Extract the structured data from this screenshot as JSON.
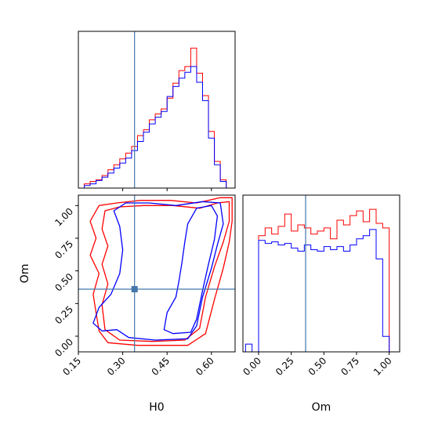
{
  "chart_data": [
    {
      "type": "histogram",
      "panel": "H0 marginal",
      "xlim": [
        0.15,
        0.68
      ],
      "x_ticks": [
        0.3,
        0.45,
        0.6
      ],
      "truth_line": 0.34,
      "bin_edges": [
        0.15,
        0.17,
        0.19,
        0.21,
        0.23,
        0.25,
        0.27,
        0.29,
        0.31,
        0.33,
        0.35,
        0.37,
        0.39,
        0.41,
        0.43,
        0.45,
        0.47,
        0.49,
        0.51,
        0.53,
        0.55,
        0.57,
        0.59,
        0.61,
        0.63,
        0.65,
        0.67
      ],
      "series": [
        {
          "color": "#ff0000",
          "counts": [
            0,
            0.5,
            0.8,
            1,
            1.5,
            2.2,
            2.8,
            3.5,
            4.2,
            5.0,
            6.3,
            7.0,
            8.2,
            8.9,
            9.5,
            10.8,
            12.6,
            14.1,
            14.6,
            16.8,
            13.8,
            11.1,
            6.8,
            3.2,
            1.0,
            0
          ]
        },
        {
          "color": "#0000ff",
          "counts": [
            0,
            0.3,
            0.5,
            0.9,
            1.3,
            1.8,
            2.4,
            3.0,
            3.6,
            4.5,
            5.6,
            6.7,
            7.7,
            8.5,
            9.2,
            11.0,
            12.2,
            13.2,
            13.9,
            14.6,
            12.7,
            10.5,
            6.0,
            2.8,
            0.8,
            0
          ]
        }
      ]
    },
    {
      "type": "contour",
      "panel": "H0 vs Om",
      "xlabel": "H0",
      "ylabel": "Om",
      "xlim": [
        0.15,
        0.68
      ],
      "ylim": [
        -0.12,
        1.08
      ],
      "x_ticks": [
        0.15,
        0.3,
        0.45,
        0.6
      ],
      "y_ticks": [
        0.0,
        0.25,
        0.5,
        0.75,
        1.0
      ],
      "truth_point": [
        0.34,
        0.36
      ],
      "series": [
        {
          "color": "#ff0000",
          "contours": [
            [
              [
                0.22,
                0.04
              ],
              [
                0.25,
                -0.05
              ],
              [
                0.35,
                -0.07
              ],
              [
                0.52,
                -0.07
              ],
              [
                0.58,
                0.02
              ],
              [
                0.61,
                0.28
              ],
              [
                0.64,
                0.52
              ],
              [
                0.66,
                0.72
              ],
              [
                0.67,
                0.88
              ],
              [
                0.67,
                1.06
              ],
              [
                0.63,
                1.06
              ],
              [
                0.55,
                1.02
              ],
              [
                0.46,
                1.04
              ],
              [
                0.36,
                1.04
              ],
              [
                0.28,
                1.02
              ],
              [
                0.22,
                1.0
              ],
              [
                0.19,
                0.88
              ],
              [
                0.21,
                0.75
              ],
              [
                0.19,
                0.62
              ],
              [
                0.22,
                0.48
              ],
              [
                0.2,
                0.32
              ],
              [
                0.21,
                0.18
              ]
            ],
            [
              [
                0.24,
                0.05
              ],
              [
                0.29,
                -0.03
              ],
              [
                0.4,
                -0.04
              ],
              [
                0.51,
                -0.03
              ],
              [
                0.56,
                0.06
              ],
              [
                0.58,
                0.3
              ],
              [
                0.61,
                0.53
              ],
              [
                0.64,
                0.72
              ],
              [
                0.66,
                0.88
              ],
              [
                0.66,
                1.03
              ],
              [
                0.62,
                1.02
              ],
              [
                0.56,
                0.98
              ],
              [
                0.47,
                1.0
              ],
              [
                0.37,
                1.0
              ],
              [
                0.29,
                0.99
              ],
              [
                0.24,
                0.96
              ],
              [
                0.23,
                0.82
              ],
              [
                0.25,
                0.69
              ],
              [
                0.23,
                0.55
              ],
              [
                0.25,
                0.4
              ],
              [
                0.23,
                0.24
              ]
            ]
          ]
        },
        {
          "color": "#0000ff",
          "contours": [
            [
              [
                0.2,
                0.1
              ],
              [
                0.23,
                0.04
              ],
              [
                0.28,
                0.05
              ],
              [
                0.32,
                -0.01
              ],
              [
                0.41,
                -0.03
              ],
              [
                0.52,
                -0.02
              ],
              [
                0.55,
                0.08
              ],
              [
                0.57,
                0.3
              ],
              [
                0.6,
                0.52
              ],
              [
                0.62,
                0.7
              ],
              [
                0.64,
                0.86
              ],
              [
                0.63,
                1.02
              ],
              [
                0.57,
                1.03
              ],
              [
                0.48,
                1.0
              ],
              [
                0.39,
                1.02
              ],
              [
                0.31,
                1.02
              ],
              [
                0.27,
                0.96
              ],
              [
                0.29,
                0.84
              ],
              [
                0.3,
                0.66
              ],
              [
                0.29,
                0.48
              ],
              [
                0.26,
                0.32
              ],
              [
                0.22,
                0.22
              ]
            ],
            [
              [
                0.44,
                0.05
              ],
              [
                0.47,
                0.02
              ],
              [
                0.53,
                0.03
              ],
              [
                0.55,
                0.13
              ],
              [
                0.57,
                0.35
              ],
              [
                0.59,
                0.55
              ],
              [
                0.61,
                0.74
              ],
              [
                0.62,
                0.92
              ],
              [
                0.6,
                1.0
              ],
              [
                0.55,
                0.98
              ],
              [
                0.52,
                0.86
              ],
              [
                0.51,
                0.72
              ],
              [
                0.5,
                0.56
              ],
              [
                0.49,
                0.42
              ],
              [
                0.48,
                0.3
              ],
              [
                0.45,
                0.18
              ]
            ]
          ]
        }
      ]
    },
    {
      "type": "histogram",
      "panel": "Om marginal",
      "xlabel": "Om",
      "xlim": [
        -0.12,
        1.08
      ],
      "x_ticks": [
        0.0,
        0.25,
        0.5,
        0.75,
        1.0
      ],
      "x_tick_labels": [
        "0.00",
        "0.25",
        "0.50",
        "0.75",
        "1.00"
      ],
      "truth_line": 0.36,
      "bin_edges": [
        -0.1,
        -0.05,
        0.0,
        0.05,
        0.1,
        0.15,
        0.2,
        0.25,
        0.3,
        0.35,
        0.4,
        0.45,
        0.5,
        0.55,
        0.6,
        0.65,
        0.7,
        0.75,
        0.8,
        0.85,
        0.9,
        0.95,
        1.0,
        1.05
      ],
      "series": [
        {
          "color": "#ff0000",
          "counts": [
            0,
            0,
            7.5,
            8.0,
            7.6,
            8.1,
            8.9,
            7.8,
            8.2,
            8.0,
            7.6,
            7.8,
            8.0,
            7.3,
            8.5,
            8.2,
            8.8,
            9.1,
            8.4,
            9.2,
            8.3,
            8.0,
            0
          ]
        },
        {
          "color": "#0000ff",
          "counts": [
            0.5,
            0,
            7.2,
            7.0,
            7.1,
            6.9,
            7.0,
            6.7,
            6.5,
            6.9,
            6.6,
            6.5,
            6.8,
            6.6,
            6.8,
            6.5,
            6.9,
            7.3,
            7.5,
            7.9,
            6.0,
            1.0,
            0
          ]
        }
      ]
    }
  ]
}
